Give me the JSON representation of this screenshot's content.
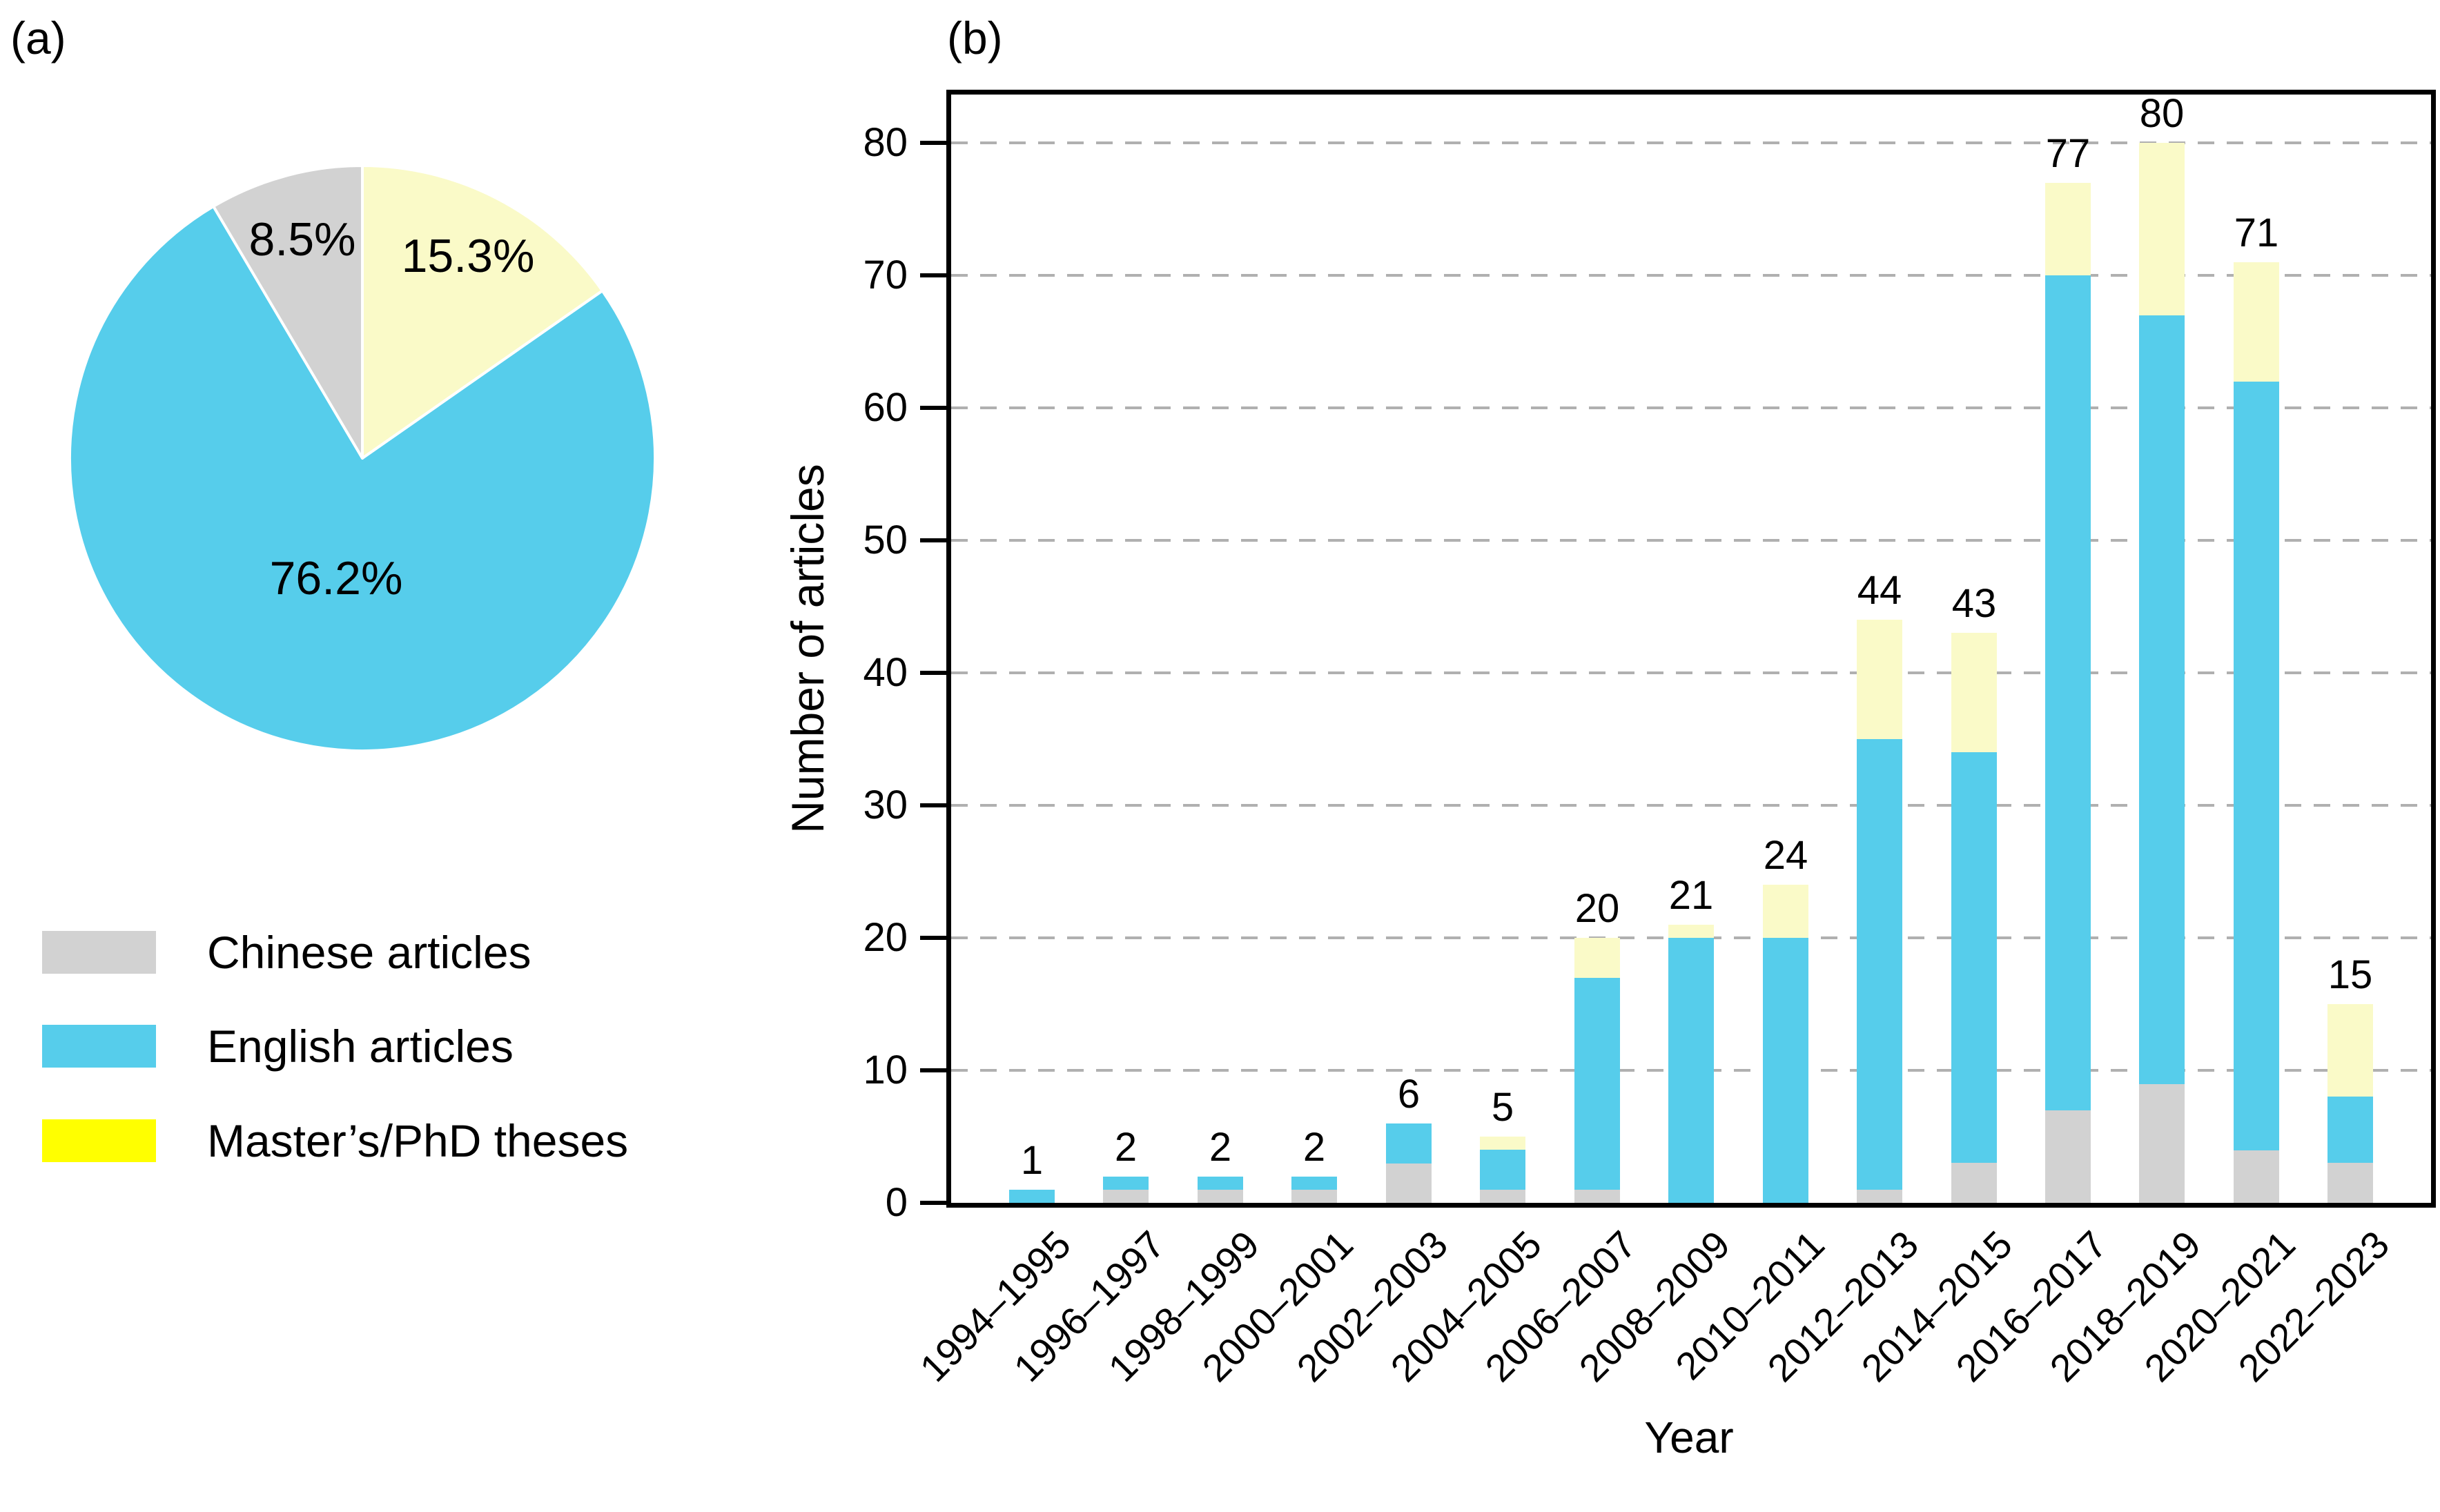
{
  "figure": {
    "panel_a_label": "(a)",
    "panel_b_label": "(b)"
  },
  "legend": {
    "items": [
      {
        "label": "Chinese articles",
        "swatch": "#d2d2d2"
      },
      {
        "label": "English articles",
        "swatch": "#56cdeb"
      },
      {
        "label": "Master’s/PhD theses",
        "swatch": "#ffff00"
      }
    ]
  },
  "chart_data": [
    {
      "type": "pie",
      "panel": "(a)",
      "start_angle": "12 o'clock",
      "direction": "clockwise",
      "slices": [
        {
          "label": "Master’s/PhD theses",
          "pct": 15.3,
          "text": "15.3%",
          "color": "#fafac8"
        },
        {
          "label": "English articles",
          "pct": 76.2,
          "text": "76.2%",
          "color": "#56cdeb"
        },
        {
          "label": "Chinese articles",
          "pct": 8.5,
          "text": "8.5%",
          "color": "#d2d2d2"
        }
      ],
      "legend_entries": [
        "Chinese articles",
        "English articles",
        "Master’s/PhD theses"
      ]
    },
    {
      "type": "bar",
      "stacked": true,
      "panel": "(b)",
      "xlabel": "Year",
      "ylabel": "Number of articles",
      "categories": [
        "1994–1995",
        "1996–1997",
        "1998–1999",
        "2000–2001",
        "2002–2003",
        "2004–2005",
        "2006–2007",
        "2008–2009",
        "2010–2011",
        "2012–2013",
        "2014–2015",
        "2016–2017",
        "2018–2019",
        "2020–2021",
        "2022–2023"
      ],
      "series": [
        {
          "name": "Chinese articles",
          "color": "#d2d2d2",
          "values": [
            0,
            1,
            1,
            1,
            3,
            1,
            1,
            0,
            0,
            1,
            3,
            7,
            9,
            4,
            3
          ]
        },
        {
          "name": "English articles",
          "color": "#56cdeb",
          "values": [
            1,
            1,
            1,
            1,
            3,
            3,
            16,
            20,
            20,
            34,
            31,
            63,
            58,
            58,
            5
          ]
        },
        {
          "name": "Master’s/PhD theses",
          "color": "#fafac8",
          "values": [
            0,
            0,
            0,
            0,
            0,
            1,
            3,
            1,
            4,
            9,
            9,
            7,
            13,
            9,
            7
          ]
        }
      ],
      "totals": [
        1,
        2,
        2,
        2,
        6,
        5,
        20,
        21,
        24,
        44,
        43,
        77,
        80,
        71,
        15
      ],
      "yticks": [
        0,
        10,
        20,
        30,
        40,
        50,
        60,
        70,
        80
      ],
      "ylim": [
        0,
        84
      ],
      "grid": "horizontal-dashed"
    }
  ]
}
